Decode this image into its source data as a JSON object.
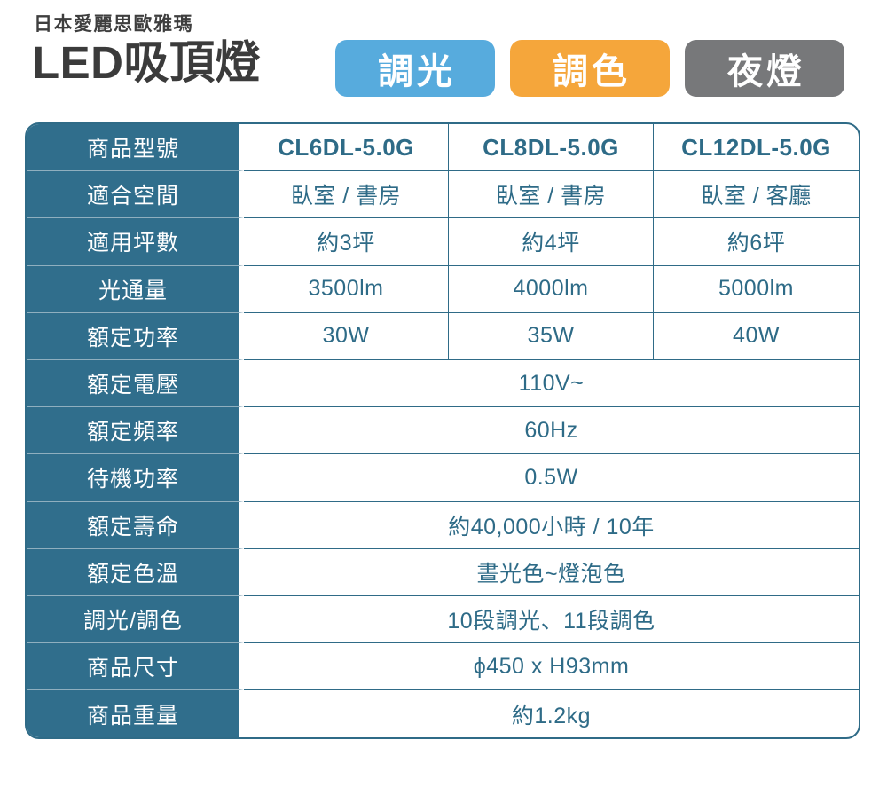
{
  "brand": "日本愛麗思歐雅瑪",
  "title": "LED吸頂燈",
  "badges": [
    {
      "label": "調光",
      "color": "#57abdd"
    },
    {
      "label": "調色",
      "color": "#f5a63b"
    },
    {
      "label": "夜燈",
      "color": "#77787a"
    }
  ],
  "colors": {
    "table_fill": "#306e8c",
    "table_border": "#2f6b87",
    "value_text": "#2e6b87",
    "label_divider": "#8fafbf",
    "title_text": "#3b3b3b"
  },
  "table": {
    "rows": [
      {
        "label": "商品型號",
        "values": [
          "CL6DL-5.0G",
          "CL8DL-5.0G",
          "CL12DL-5.0G"
        ]
      },
      {
        "label": "適合空間",
        "values": [
          "臥室 / 書房",
          "臥室 / 書房",
          "臥室 / 客廳"
        ]
      },
      {
        "label": "適用坪數",
        "values": [
          "約3坪",
          "約4坪",
          "約6坪"
        ]
      },
      {
        "label": "光通量",
        "values": [
          "3500lm",
          "4000lm",
          "5000lm"
        ]
      },
      {
        "label": "額定功率",
        "values": [
          "30W",
          "35W",
          "40W"
        ]
      },
      {
        "label": "額定電壓",
        "values": [
          "110V~"
        ]
      },
      {
        "label": "額定頻率",
        "values": [
          "60Hz"
        ]
      },
      {
        "label": "待機功率",
        "values": [
          "0.5W"
        ]
      },
      {
        "label": "額定壽命",
        "values": [
          "約40,000小時 / 10年"
        ]
      },
      {
        "label": "額定色溫",
        "values": [
          "晝光色~燈泡色"
        ]
      },
      {
        "label": "調光/調色",
        "values": [
          "10段調光、11段調色"
        ]
      },
      {
        "label": "商品尺寸",
        "values": [
          "ϕ450 x H93mm"
        ]
      },
      {
        "label": "商品重量",
        "values": [
          "約1.2kg"
        ]
      }
    ]
  }
}
